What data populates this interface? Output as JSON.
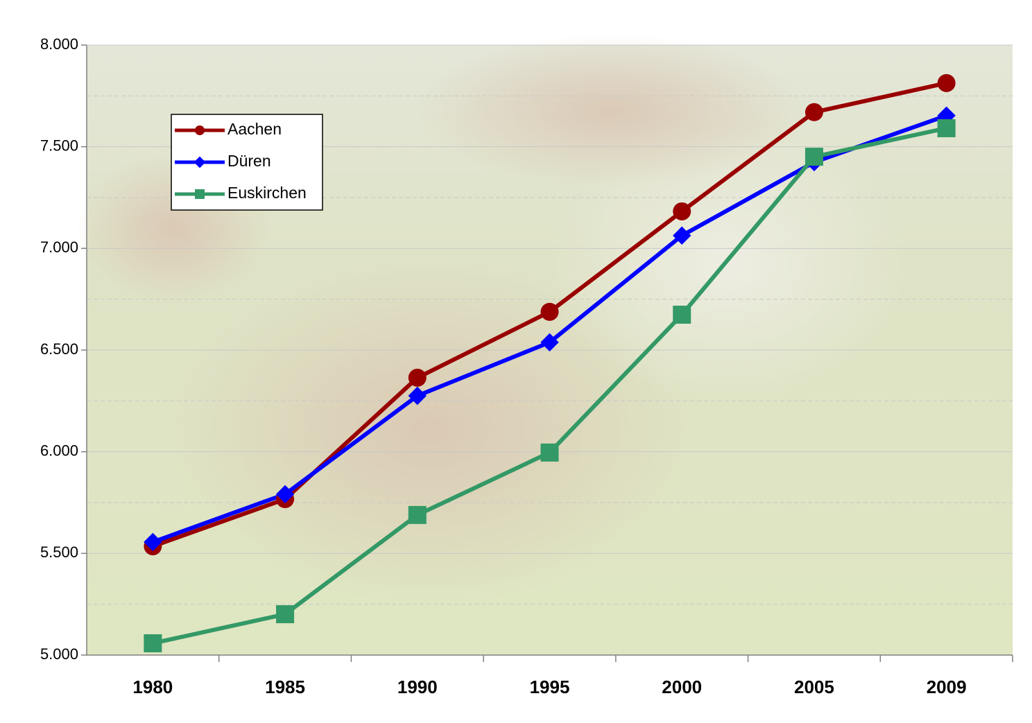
{
  "chart_data": {
    "type": "line",
    "categories": [
      "1980",
      "1985",
      "1990",
      "1995",
      "2000",
      "2005",
      "2009"
    ],
    "series": [
      {
        "name": "Aachen",
        "color": "#990000",
        "marker": "circle",
        "values": [
          5535,
          5767,
          6364,
          6688,
          7182,
          7670,
          7813
        ]
      },
      {
        "name": "Düren",
        "color": "#0000ff",
        "marker": "diamond",
        "values": [
          5556,
          5791,
          6275,
          6538,
          7063,
          7424,
          7653
        ]
      },
      {
        "name": "Euskirchen",
        "color": "#339966",
        "marker": "square",
        "values": [
          5058,
          5201,
          5689,
          5996,
          6674,
          7451,
          7591
        ]
      }
    ],
    "ylim": [
      5000,
      8000
    ],
    "yticks": [
      {
        "value": 5000,
        "label": "5.000"
      },
      {
        "value": 5500,
        "label": "5.500"
      },
      {
        "value": 6000,
        "label": "6.000"
      },
      {
        "value": 6500,
        "label": "6.500"
      },
      {
        "value": 7000,
        "label": "7.000"
      },
      {
        "value": 7500,
        "label": "7.500"
      },
      {
        "value": 8000,
        "label": "8.000"
      }
    ],
    "minor_yticks": [
      5250,
      5750,
      6250,
      6750,
      7250,
      7750
    ],
    "grid": true,
    "legend": "upper left"
  }
}
